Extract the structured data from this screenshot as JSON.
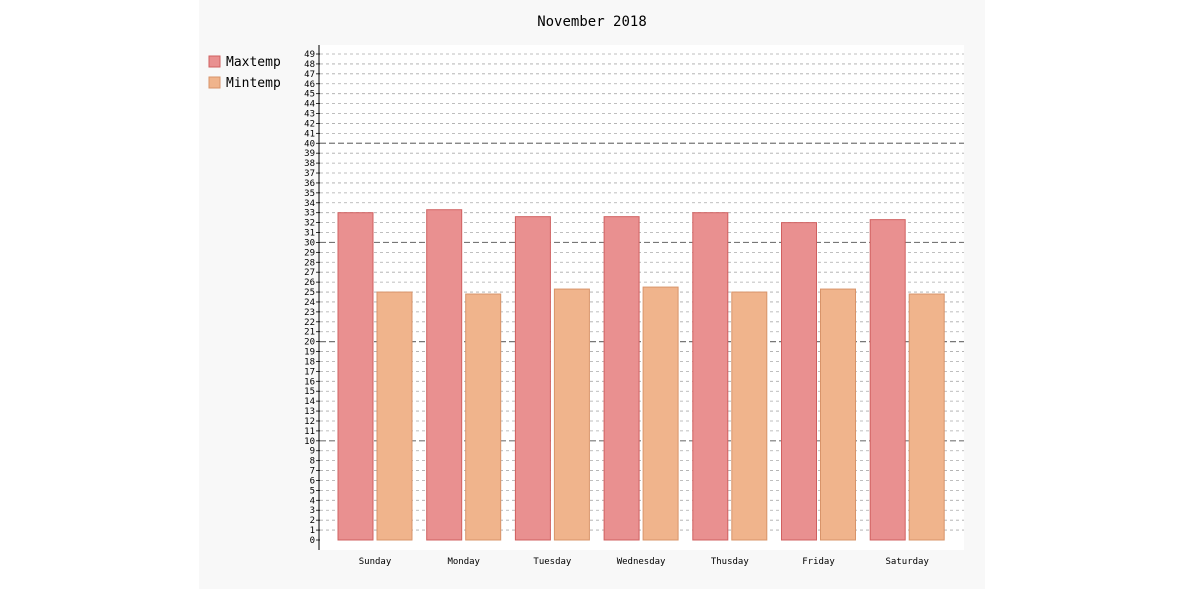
{
  "chart_data": {
    "type": "bar",
    "title": "November 2018",
    "xlabel": "",
    "ylabel": "",
    "categories": [
      "Sunday",
      "Monday",
      "Tuesday",
      "Wednesday",
      "Thusday",
      "Friday",
      "Saturday"
    ],
    "series": [
      {
        "name": "Maxtemp",
        "color": "#e99090",
        "stroke": "#d06060",
        "values": [
          33.0,
          33.3,
          32.6,
          32.6,
          33.0,
          32.0,
          32.3
        ]
      },
      {
        "name": "Mintemp",
        "color": "#f0b48c",
        "stroke": "#d8946a",
        "values": [
          25.0,
          24.8,
          25.3,
          25.5,
          25.0,
          25.3,
          24.8
        ]
      }
    ],
    "ylim": [
      0,
      49
    ],
    "yticks": [
      0,
      1,
      2,
      3,
      4,
      5,
      6,
      7,
      8,
      9,
      10,
      11,
      12,
      13,
      14,
      15,
      16,
      17,
      18,
      19,
      20,
      21,
      22,
      23,
      24,
      25,
      26,
      27,
      28,
      29,
      30,
      31,
      32,
      33,
      34,
      35,
      36,
      37,
      38,
      39,
      40,
      41,
      42,
      43,
      44,
      45,
      46,
      47,
      48,
      49
    ],
    "major_gridlines": [
      10,
      20,
      30,
      40
    ],
    "grid": true,
    "legend_position": "top-left"
  }
}
